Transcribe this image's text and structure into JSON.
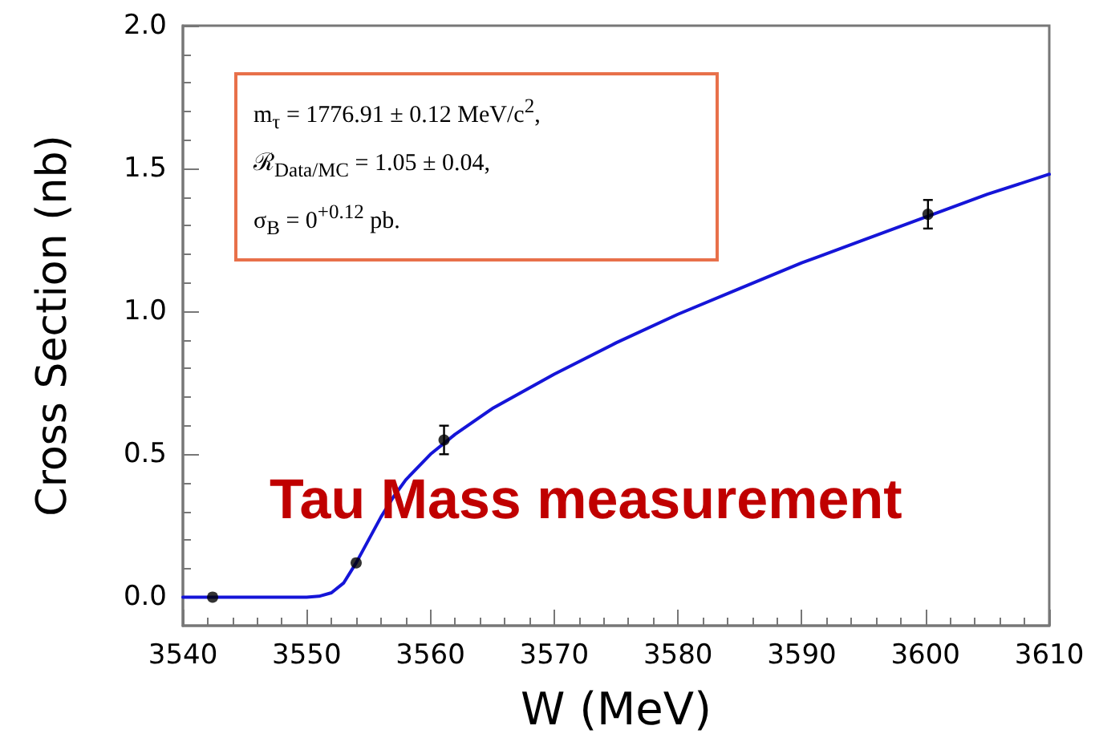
{
  "chart_data": {
    "type": "scatter",
    "xlabel": "W (MeV)",
    "ylabel": "Cross Section (nb)",
    "xlim": [
      3540,
      3610
    ],
    "xticks": [
      3540,
      3550,
      3560,
      3570,
      3580,
      3590,
      3600,
      3610
    ],
    "ylim": [
      -0.1,
      2.0
    ],
    "yticks": [
      {
        "value": 0,
        "label": "0.0"
      },
      {
        "value": 0.5,
        "label": "0.5"
      },
      {
        "value": 1,
        "label": "1.0"
      },
      {
        "value": 1.5,
        "label": "1.5"
      },
      {
        "value": 2,
        "label": "2.0"
      }
    ],
    "grid": false,
    "series": [
      {
        "type": "line",
        "color": "#1515d8",
        "marker": "none",
        "line_style": "solid",
        "x": [
          3540,
          3545,
          3550,
          3551,
          3552,
          3553,
          3554,
          3555,
          3556,
          3557,
          3558,
          3560,
          3562,
          3565,
          3570,
          3575,
          3580,
          3585,
          3590,
          3595,
          3600,
          3605,
          3610
        ],
        "values": [
          0,
          0,
          0,
          0.003,
          0.015,
          0.05,
          0.12,
          0.2,
          0.28,
          0.35,
          0.41,
          0.5,
          0.57,
          0.66,
          0.78,
          0.89,
          0.99,
          1.08,
          1.17,
          1.25,
          1.33,
          1.41,
          1.48
        ]
      },
      {
        "color": "#000000",
        "marker": "circle",
        "x": [
          3542.4,
          3554,
          3561.1,
          3600.2
        ],
        "values": [
          0,
          0.12,
          0.55,
          1.34
        ],
        "errors": [
          null,
          null,
          0.05,
          0.05
        ]
      }
    ],
    "annotations": [
      "m$_{τ}$ = 1776.91 ± 0.12 MeV/c$^{2}$,",
      "ℛ$_{Data/MC}$ = 1.05 ± 0.04,",
      "σ$_{B}$ = 0$^{+0.12}$ pb.",
      "Tau Mass measurement"
    ]
  }
}
